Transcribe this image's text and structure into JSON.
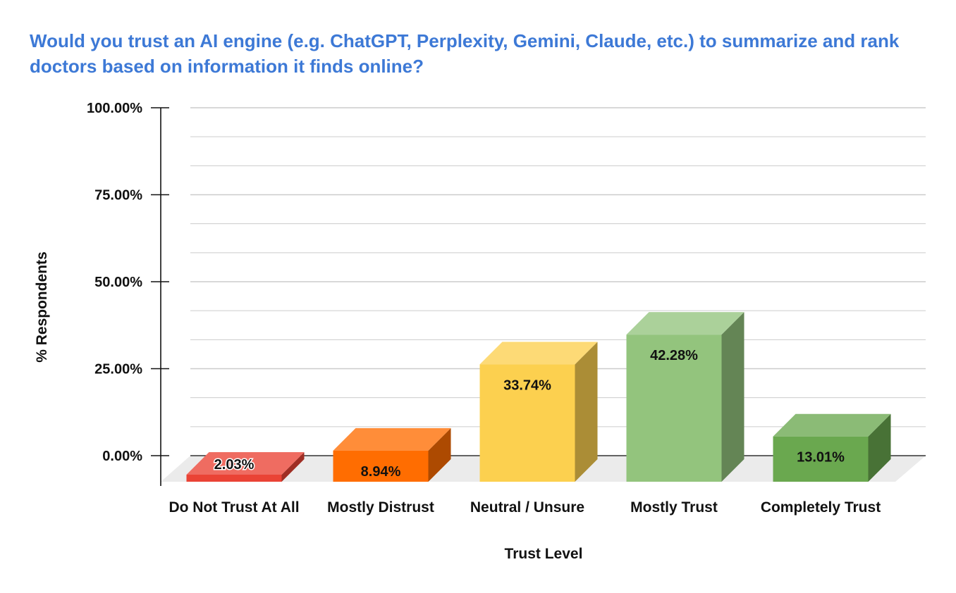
{
  "chart_data": {
    "type": "bar",
    "title": "Would you trust an AI engine (e.g. ChatGPT, Perplexity, Gemini, Claude, etc.) to summarize and rank doctors based on information it finds online?",
    "xlabel": "Trust Level",
    "ylabel": "% Respondents",
    "categories": [
      "Do Not Trust At All",
      "Mostly Distrust",
      "Neutral / Unsure",
      "Mostly Trust",
      "Completely Trust"
    ],
    "values": [
      2.03,
      8.94,
      33.74,
      42.28,
      13.01
    ],
    "value_labels": [
      "2.03%",
      "8.94%",
      "33.74%",
      "42.28%",
      "13.01%"
    ],
    "yticks": [
      "0.00%",
      "25.00%",
      "50.00%",
      "75.00%",
      "100.00%"
    ],
    "ylim": [
      0,
      100
    ],
    "grid": true,
    "legend": "none",
    "style": "3d-bar",
    "colors": {
      "bars": [
        "#ea4335",
        "#ff6d01",
        "#fcd04f",
        "#93c47d",
        "#6aa84f"
      ],
      "title": "#3d79d6",
      "grid": "#cccccc",
      "floor": "#ebebeb"
    }
  }
}
